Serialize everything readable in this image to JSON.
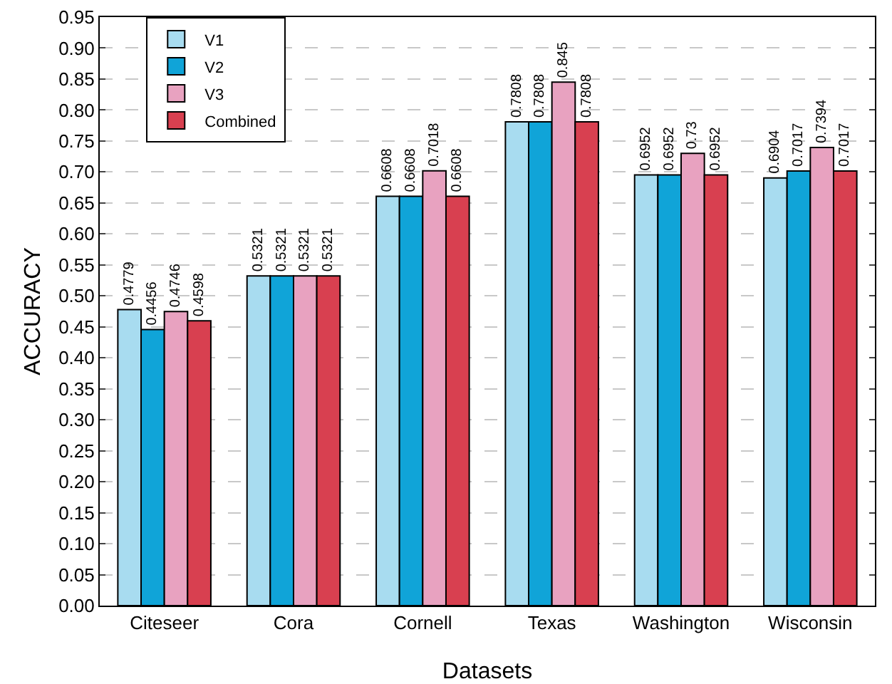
{
  "chart_data": {
    "type": "bar",
    "xlabel": "Datasets",
    "ylabel": "ACCURACY",
    "categories": [
      "Citeseer",
      "Cora",
      "Cornell",
      "Texas",
      "Washington",
      "Wisconsin"
    ],
    "series": [
      {
        "name": "V1",
        "color": "#a8dcf0",
        "values": [
          0.4779,
          0.5321,
          0.6608,
          0.7808,
          0.6952,
          0.6904
        ]
      },
      {
        "name": "V2",
        "color": "#10a4d8",
        "values": [
          0.4456,
          0.5321,
          0.6608,
          0.7808,
          0.6952,
          0.7017
        ]
      },
      {
        "name": "V3",
        "color": "#e8a2c0",
        "values": [
          0.4746,
          0.5321,
          0.7018,
          0.845,
          0.73,
          0.7394
        ]
      },
      {
        "name": "Combined",
        "color": "#d84050",
        "values": [
          0.4598,
          0.5321,
          0.6608,
          0.7808,
          0.6952,
          0.7017
        ]
      }
    ],
    "ylim": [
      0,
      0.95
    ],
    "yticks": [
      "0.00",
      "0.05",
      "0.10",
      "0.15",
      "0.20",
      "0.25",
      "0.30",
      "0.35",
      "0.40",
      "0.45",
      "0.50",
      "0.55",
      "0.60",
      "0.65",
      "0.70",
      "0.75",
      "0.80",
      "0.85",
      "0.90",
      "0.95"
    ],
    "grid": "y",
    "legend": "top left",
    "data_labels": true
  }
}
